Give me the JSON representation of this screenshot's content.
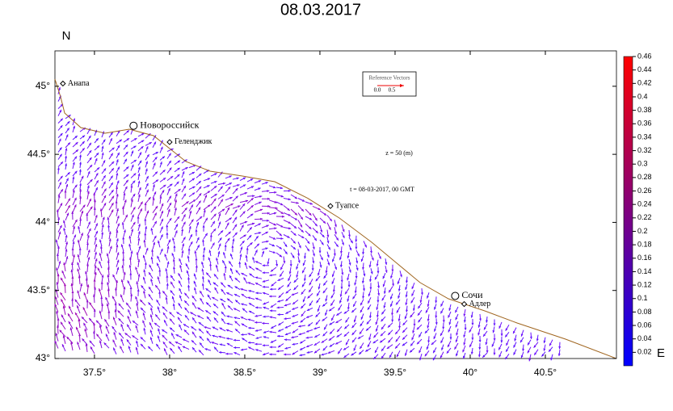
{
  "map": {
    "title": "08.03.2017",
    "north_label": "N",
    "east_label": "E",
    "xlim": [
      37.237,
      40.973
    ],
    "ylim": [
      43,
      45.26
    ],
    "xticks": [
      {
        "value": 37.5,
        "label": "37.5°"
      },
      {
        "value": 38,
        "label": "38°"
      },
      {
        "value": 38.5,
        "label": "38.5°"
      },
      {
        "value": 39,
        "label": "39°"
      },
      {
        "value": 39.5,
        "label": "39.5°"
      },
      {
        "value": 40,
        "label": "40°"
      },
      {
        "value": 40.5,
        "label": "40.5°"
      }
    ],
    "yticks": [
      {
        "value": 43,
        "label": "43°"
      },
      {
        "value": 43.5,
        "label": "43.5°"
      },
      {
        "value": 44,
        "label": "44°"
      },
      {
        "value": 44.5,
        "label": "44.5°"
      },
      {
        "value": 45,
        "label": "45°"
      }
    ],
    "cities": [
      {
        "name": "Анапа",
        "lon": 37.29,
        "lat": 45.02,
        "marker": "diamond"
      },
      {
        "name": "Новороссийск",
        "lon": 37.76,
        "lat": 44.71,
        "marker": "circle"
      },
      {
        "name": "Геленджик",
        "lon": 38.0,
        "lat": 44.59,
        "marker": "diamond"
      },
      {
        "name": "Туапсе",
        "lon": 39.07,
        "lat": 44.12,
        "marker": "diamond"
      },
      {
        "name": "Сочи",
        "lon": 39.9,
        "lat": 43.46,
        "marker": "circle"
      },
      {
        "name": "Адлер",
        "lon": 39.96,
        "lat": 43.4,
        "marker": "diamond"
      }
    ],
    "reference": {
      "title": "Reference Vectors",
      "labels": [
        "0.0",
        "0.5"
      ]
    },
    "depth_label": "z = 50 (m)",
    "time_label": "t = 08-03-2017, 00 GMT",
    "colorbar": {
      "clim": [
        0,
        0.46
      ],
      "ticks": [
        0.02,
        0.04,
        0.06,
        0.08,
        0.1,
        0.12,
        0.14,
        0.16,
        0.18,
        0.2,
        0.22,
        0.24,
        0.26,
        0.28,
        0.3,
        0.32,
        0.34,
        0.36,
        0.38,
        0.4,
        0.42,
        0.44,
        0.46
      ]
    }
  }
}
